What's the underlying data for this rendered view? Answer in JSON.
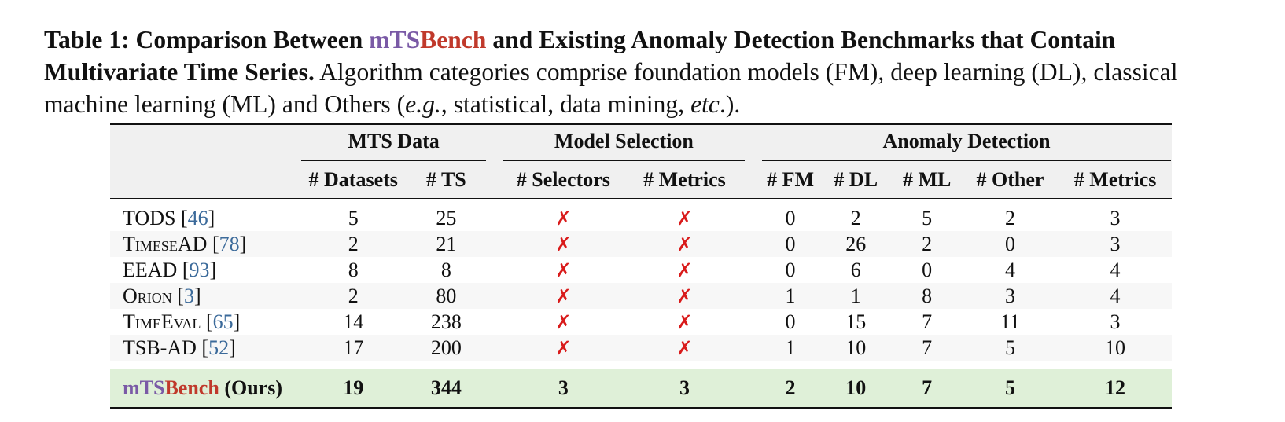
{
  "caption": {
    "label": "Table 1: Comparison Between ",
    "brand_m": "mTS",
    "brand_b": "Bench",
    "title_rest": " and Existing Anomaly Detection Benchmarks that Contain Multivariate Time Series.",
    "body_1": " Algorithm categories comprise foundation models (FM), deep learning (DL), classical machine learning (ML) and Others (",
    "eg": "e.g.",
    "body_2": ", statistical, data mining, ",
    "etc": "etc",
    "body_3": ".)."
  },
  "table": {
    "groups": {
      "mts_data": "MTS Data",
      "model_selection": "Model Selection",
      "anomaly_detection": "Anomaly Detection"
    },
    "columns": [
      "# Datasets",
      "# TS",
      "# Selectors",
      "# Metrics",
      "# FM",
      "# DL",
      "# ML",
      "# Other",
      "# Metrics"
    ],
    "rows": [
      {
        "name": "TODS",
        "ref": "46",
        "values": [
          "5",
          "25",
          "✗",
          "✗",
          "0",
          "2",
          "5",
          "2",
          "3"
        ]
      },
      {
        "name": "TimeseAD",
        "ref": "78",
        "values": [
          "2",
          "21",
          "✗",
          "✗",
          "0",
          "26",
          "2",
          "0",
          "3"
        ]
      },
      {
        "name": "EEAD",
        "ref": "93",
        "values": [
          "8",
          "8",
          "✗",
          "✗",
          "0",
          "6",
          "0",
          "4",
          "4"
        ]
      },
      {
        "name": "Orion",
        "ref": "3",
        "values": [
          "2",
          "80",
          "✗",
          "✗",
          "1",
          "1",
          "8",
          "3",
          "4"
        ]
      },
      {
        "name": "TimeEval",
        "ref": "65",
        "values": [
          "14",
          "238",
          "✗",
          "✗",
          "0",
          "15",
          "7",
          "11",
          "3"
        ]
      },
      {
        "name": "TSB-AD",
        "ref": "52",
        "values": [
          "17",
          "200",
          "✗",
          "✗",
          "1",
          "10",
          "7",
          "5",
          "10"
        ]
      }
    ],
    "ours": {
      "brand_m": "mTS",
      "brand_b": "Bench",
      "suffix": " (Ours)",
      "values": [
        "19",
        "344",
        "3",
        "3",
        "2",
        "10",
        "7",
        "5",
        "12"
      ]
    }
  }
}
